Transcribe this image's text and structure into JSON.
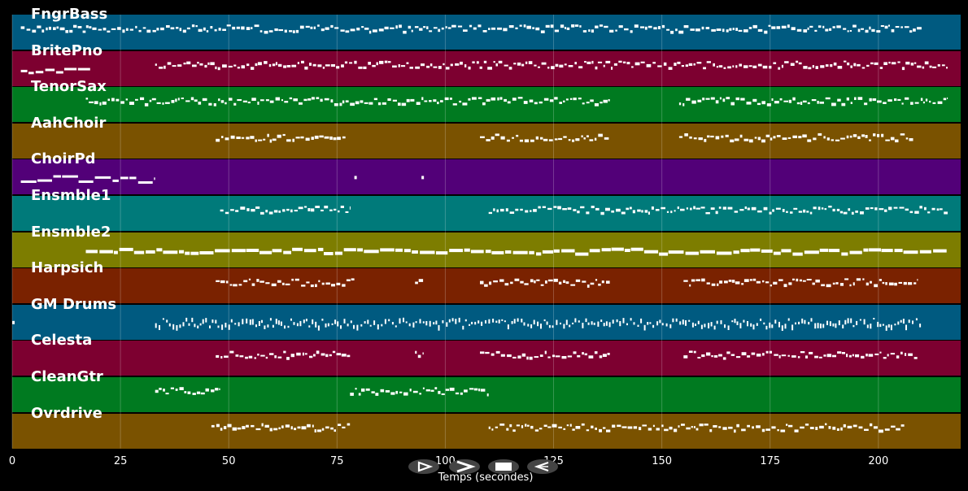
{
  "colors": {
    "background": "#000000",
    "palette": [
      "#005a80",
      "#7d0030",
      "#007a20",
      "#7a5200",
      "#520078",
      "#007a7a",
      "#7d7d00",
      "#7a2200"
    ],
    "note": "#ffffff"
  },
  "tracks": [
    {
      "name": "FngrBass",
      "color": "#005a80"
    },
    {
      "name": "BritePno",
      "color": "#7d0030"
    },
    {
      "name": "TenorSax",
      "color": "#007a20"
    },
    {
      "name": "AahChoir",
      "color": "#7a5200"
    },
    {
      "name": "ChoirPd",
      "color": "#520078"
    },
    {
      "name": "Ensmble1",
      "color": "#007a7a"
    },
    {
      "name": "Ensmble2",
      "color": "#7d7d00"
    },
    {
      "name": "Harpsich",
      "color": "#7a2200"
    },
    {
      "name": "GM Drums",
      "color": "#005a80"
    },
    {
      "name": "Celesta",
      "color": "#7d0030"
    },
    {
      "name": "CleanGtr",
      "color": "#007a20"
    },
    {
      "name": "Ovrdrive",
      "color": "#7a5200"
    }
  ],
  "axis": {
    "xlabel": "Temps (secondes)",
    "xlim": [
      0,
      219
    ],
    "ticks": [
      "0",
      "25",
      "50",
      "75",
      "100",
      "125",
      "150",
      "175",
      "200"
    ],
    "tick_values": [
      0,
      25,
      50,
      75,
      100,
      125,
      150,
      175,
      200
    ]
  },
  "controls": [
    {
      "name": "play-button",
      "icon": "play-outline-icon"
    },
    {
      "name": "forward-button",
      "icon": "chevron-right-icon"
    },
    {
      "name": "stop-button",
      "icon": "stop-icon"
    },
    {
      "name": "rewind-button",
      "icon": "play-reverse-icon"
    }
  ],
  "note_segments": [
    [
      [
        2,
        210,
        "dense"
      ]
    ],
    [
      [
        2,
        18,
        "block"
      ],
      [
        33,
        216,
        "dense"
      ]
    ],
    [
      [
        17,
        138,
        "dense"
      ],
      [
        154,
        216,
        "dense"
      ]
    ],
    [
      [
        47,
        77,
        "dense"
      ],
      [
        108,
        138,
        "dense"
      ],
      [
        154,
        208,
        "dense"
      ]
    ],
    [
      [
        2,
        33,
        "block"
      ],
      [
        79,
        79.5,
        "dot"
      ],
      [
        94.5,
        95,
        "dot"
      ]
    ],
    [
      [
        48,
        78,
        "dense"
      ],
      [
        110,
        216,
        "dense"
      ]
    ],
    [
      [
        17,
        216,
        "thick"
      ]
    ],
    [
      [
        47,
        79,
        "dense"
      ],
      [
        93,
        95,
        "dense"
      ],
      [
        108,
        138,
        "dense"
      ],
      [
        155,
        209,
        "dense"
      ]
    ],
    [
      [
        0,
        1,
        "dot"
      ],
      [
        33,
        210,
        "drums"
      ]
    ],
    [
      [
        47,
        78,
        "dense"
      ],
      [
        93,
        95,
        "dense"
      ],
      [
        108,
        138,
        "dense"
      ],
      [
        155,
        209,
        "dense"
      ]
    ],
    [
      [
        33,
        48,
        "dense"
      ],
      [
        78,
        110,
        "dense"
      ]
    ],
    [
      [
        46,
        78,
        "dense"
      ],
      [
        110,
        206,
        "dense"
      ]
    ]
  ]
}
